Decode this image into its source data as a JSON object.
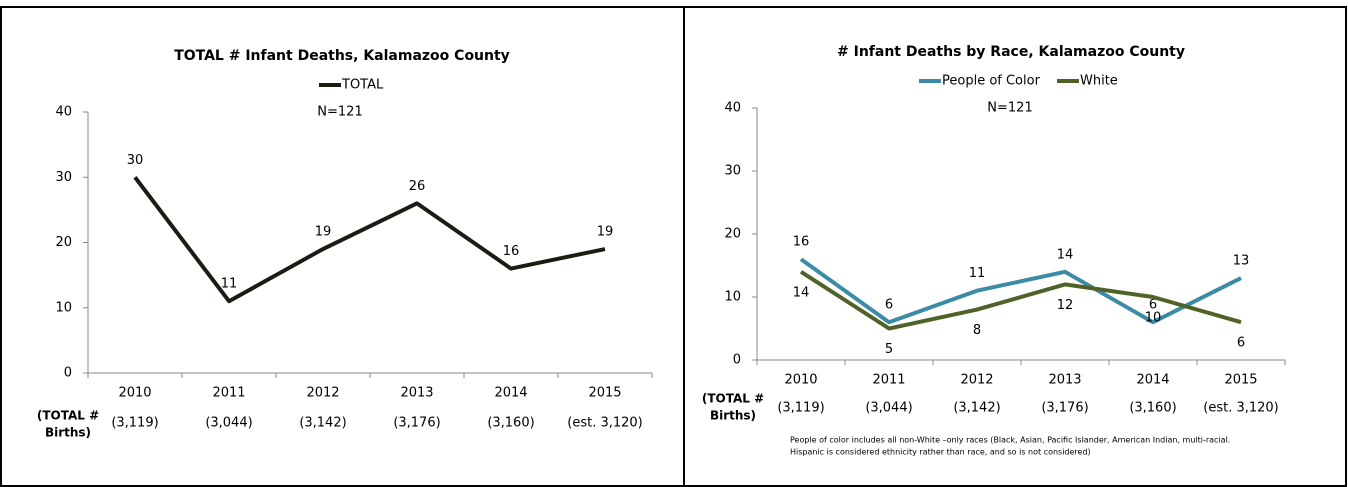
{
  "chart_data": [
    {
      "type": "line",
      "title": "TOTAL # Infant Deaths, Kalamazoo County",
      "annotation": "N=121",
      "categories": [
        "2010",
        "2011",
        "2012",
        "2013",
        "2014",
        "2015"
      ],
      "births_label": [
        "(TOTAL #",
        "Births)"
      ],
      "births": [
        "(3,119)",
        "(3,044)",
        "(3,142)",
        "(3,176)",
        "(3,160)",
        "(est. 3,120)"
      ],
      "series": [
        {
          "name": "TOTAL",
          "color": "#1e1b12",
          "values": [
            30,
            11,
            19,
            26,
            16,
            19
          ]
        }
      ],
      "ylim": [
        0,
        40
      ],
      "yticks": [
        0,
        10,
        20,
        30,
        40
      ],
      "grid": false,
      "legend": "top"
    },
    {
      "type": "line",
      "title": "# Infant Deaths by Race, Kalamazoo County",
      "annotation": "N=121",
      "categories": [
        "2010",
        "2011",
        "2012",
        "2013",
        "2014",
        "2015"
      ],
      "births_label": [
        "(TOTAL #",
        "Births)"
      ],
      "births": [
        "(3,119)",
        "(3,044)",
        "(3,142)",
        "(3,176)",
        "(3,160)",
        "(est. 3,120)"
      ],
      "series": [
        {
          "name": "People of Color",
          "color": "#3b8ba6",
          "values": [
            16,
            6,
            11,
            14,
            6,
            13
          ]
        },
        {
          "name": "White",
          "color": "#4f6228",
          "values": [
            14,
            5,
            8,
            12,
            10,
            6
          ]
        }
      ],
      "ylim": [
        0,
        40
      ],
      "yticks": [
        0,
        10,
        20,
        30,
        40
      ],
      "grid": false,
      "legend": "top",
      "footnote": [
        "People of color includes all non-White –only races (Black, Asian, Pacific Islander, American Indian, multi-racial.",
        "Hispanic is considered ethnicity rather than race, and so is not considered)"
      ]
    }
  ]
}
